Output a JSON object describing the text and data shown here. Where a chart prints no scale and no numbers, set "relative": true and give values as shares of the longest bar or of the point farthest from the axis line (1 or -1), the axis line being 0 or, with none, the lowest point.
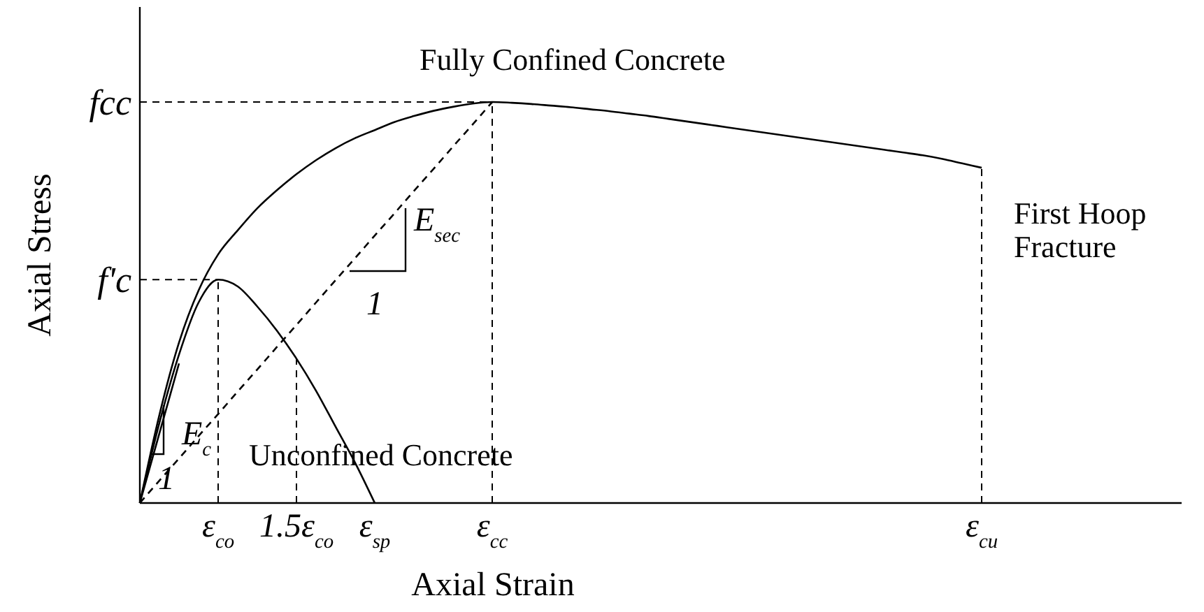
{
  "chart_data": {
    "type": "line",
    "xlabel": "Axial Strain",
    "ylabel": "Axial Stress",
    "relative": true,
    "categories": [
      null,
      null,
      null,
      null,
      "ε$_{co}$",
      null,
      null,
      null,
      "1.5ε$_{co}$",
      null,
      null,
      null,
      "ε$_{sp}$",
      null,
      null,
      null,
      null,
      null,
      "ε$_{cc}$",
      null,
      null,
      null,
      null,
      null,
      null,
      null,
      null,
      null,
      null,
      null,
      null,
      null,
      null,
      null,
      null,
      null,
      null,
      null,
      null,
      null,
      null,
      null,
      null,
      "ε$_{cu}$",
      null,
      null,
      null,
      null,
      null,
      null,
      null,
      null,
      null,
      null
    ],
    "series": [
      {
        "color": "#000000",
        "values": [
          0,
          0.22,
          0.4,
          0.53,
          0.62,
          0.68,
          0.735,
          0.78,
          0.82,
          0.855,
          0.885,
          0.91,
          0.93,
          0.95,
          0.965,
          0.978,
          0.988,
          0.996,
          1,
          0.998,
          0.995,
          0.991,
          0.987,
          0.982,
          0.977,
          0.971,
          0.965,
          0.958,
          0.951,
          0.944,
          0.937,
          0.93,
          0.923,
          0.916,
          0.909,
          0.902,
          0.895,
          0.888,
          0.881,
          0.874,
          0.867,
          0.858,
          0.847,
          0.836,
          null,
          null,
          null,
          null,
          null,
          null,
          null,
          null,
          null,
          null
        ]
      },
      {
        "color": "#000000",
        "values": [
          0,
          0.2,
          0.37,
          0.5,
          0.557,
          0.54,
          0.49,
          0.43,
          0.36,
          0.28,
          0.19,
          0.1,
          0,
          null,
          null,
          null,
          null,
          null,
          null,
          null,
          null,
          null,
          null,
          null,
          null,
          null,
          null,
          null,
          null,
          null,
          null,
          null,
          null,
          null,
          null,
          null,
          null,
          null,
          null,
          null,
          null,
          null,
          null,
          null,
          null,
          null,
          null,
          null,
          null,
          null,
          null,
          null,
          null,
          null
        ]
      },
      {
        "color": "#000000",
        "values": [
          0,
          0.174,
          0.348,
          null,
          null,
          null,
          null,
          null,
          null,
          null,
          null,
          null,
          null,
          null,
          null,
          null,
          null,
          null,
          null,
          null,
          null,
          null,
          null,
          null,
          null,
          null,
          null,
          null,
          null,
          null,
          null,
          null,
          null,
          null,
          null,
          null,
          null,
          null,
          null,
          null,
          null,
          null,
          null,
          null,
          null,
          null,
          null,
          null,
          null,
          null,
          null,
          null,
          null,
          null
        ]
      },
      {
        "color": "#000000",
        "line_style": "dashed",
        "values": [
          0,
          0.056,
          0.111,
          0.167,
          0.222,
          0.278,
          0.333,
          0.389,
          0.444,
          0.5,
          0.556,
          0.611,
          0.667,
          0.722,
          0.778,
          0.833,
          0.889,
          0.944,
          1,
          null,
          null,
          null,
          null,
          null,
          null,
          null,
          null,
          null,
          null,
          null,
          null,
          null,
          null,
          null,
          null,
          null,
          null,
          null,
          null,
          null,
          null,
          null,
          null,
          null,
          null,
          null,
          null,
          null,
          null,
          null,
          null,
          null,
          null,
          null
        ]
      }
    ],
    "ref_lines": [
      {
        "axis": "y",
        "value": 1,
        "label": "fcc",
        "color": "#000000",
        "line_style": "dashed"
      },
      {
        "axis": "y",
        "value": 0.557,
        "label": "f'c",
        "color": "#000000",
        "line_style": "dashed"
      },
      {
        "axis": "x",
        "value": "ε$_{co}$",
        "color": "#000000",
        "line_style": "dashed"
      },
      {
        "axis": "x",
        "value": "1.5ε$_{co}$",
        "color": "#000000",
        "line_style": "dashed"
      },
      {
        "axis": "x",
        "value": "ε$_{cc}$",
        "color": "#000000",
        "line_style": "dashed"
      },
      {
        "axis": "x",
        "value": "ε$_{cu}$",
        "color": "#000000",
        "line_style": "dashed"
      }
    ],
    "annotations": [
      "Fully Confined Concrete",
      "Unconfined Concrete",
      "First Hoop\nFracture",
      "E$_{c}$",
      "1",
      "E$_{sec}$",
      "1"
    ]
  }
}
